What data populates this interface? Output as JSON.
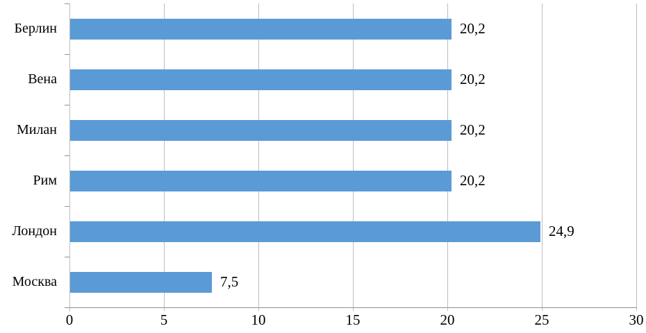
{
  "chart_data": {
    "type": "bar",
    "orientation": "horizontal",
    "title": "",
    "xlabel": "",
    "ylabel": "",
    "categories": [
      "Берлин",
      "Вена",
      "Милан",
      "Рим",
      "Лондон",
      "Москва"
    ],
    "values": [
      20.2,
      20.2,
      20.2,
      20.2,
      24.9,
      7.5
    ],
    "value_labels": [
      "20,2",
      "20,2",
      "20,2",
      "20,2",
      "24,9",
      "7,5"
    ],
    "x_ticks": [
      0,
      5,
      10,
      15,
      20,
      25,
      30
    ],
    "x_tick_labels": [
      "0",
      "5",
      "10",
      "15",
      "20",
      "25",
      "30"
    ],
    "xlim": [
      0,
      30
    ],
    "grid": "vertical",
    "legend": null
  },
  "colors": {
    "bar": "#5B9BD5",
    "gridline": "#BDBDBD",
    "axis": "#8F8F8F",
    "text": "#000000",
    "background": "#FFFFFF"
  }
}
